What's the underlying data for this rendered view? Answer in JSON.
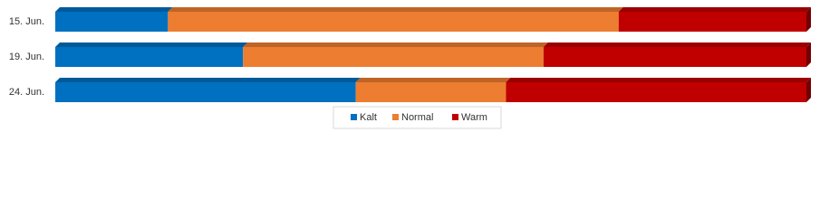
{
  "chart_data": {
    "type": "bar",
    "categories": [
      "15. Jun.",
      "19. Jun.",
      "24. Jun."
    ],
    "series": [
      {
        "name": "Kalt",
        "color": "#0070c0",
        "values": [
          15,
          25,
          40
        ]
      },
      {
        "name": "Normal",
        "color": "#ed7d31",
        "values": [
          60,
          40,
          20
        ]
      },
      {
        "name": "Warm",
        "color": "#c00000",
        "values": [
          25,
          35,
          40
        ]
      }
    ],
    "legend": "bottom"
  }
}
